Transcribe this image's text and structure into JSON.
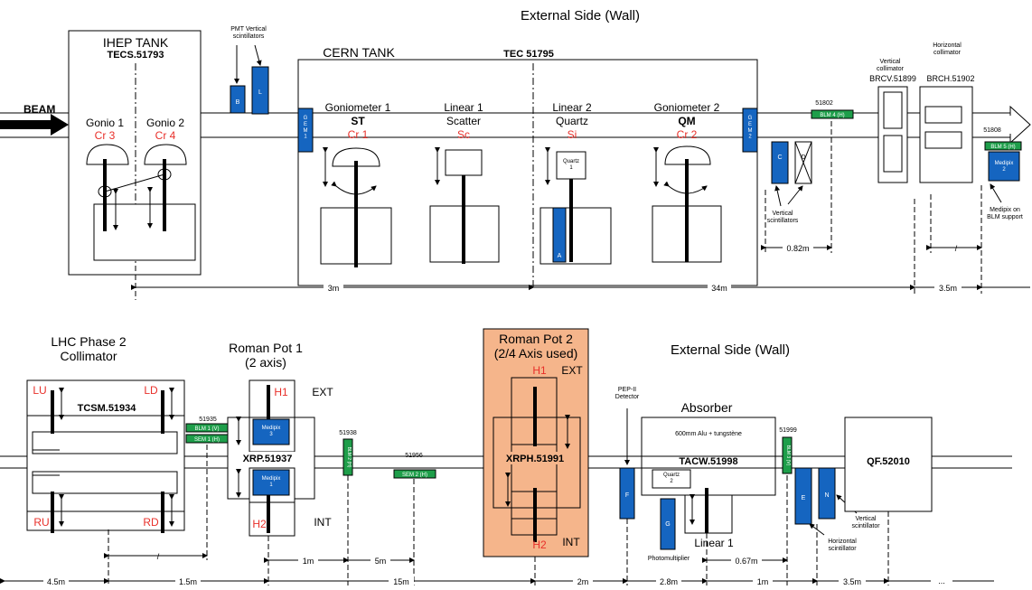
{
  "top": {
    "external_side": "External Side (Wall)",
    "beam": "BEAM",
    "ihep_tank": {
      "title": "IHEP TANK",
      "id": "TECS.51793"
    },
    "gonio1": {
      "name": "Gonio 1",
      "crystal": "Cr 3"
    },
    "gonio2": {
      "name": "Gonio 2",
      "crystal": "Cr 4"
    },
    "pmt": {
      "label": "PMT Vertical\nscintillators",
      "b": "B",
      "l": "L"
    },
    "cern_tank": {
      "title": "CERN TANK",
      "id": "TEC 51795"
    },
    "gem1": "G\nE\nM\n1",
    "gem2": "G\nE\nM\n2",
    "goniometer1": {
      "name": "Goniometer 1",
      "sub": "ST",
      "crystal": "Cr 1"
    },
    "linear1": {
      "name": "Linear 1",
      "sub": "Scatter",
      "crystal": "Sc"
    },
    "linear2": {
      "name": "Linear 2",
      "sub": "Quartz",
      "crystal": "Si",
      "box": "Quartz\n1",
      "a": "A"
    },
    "goniometer2": {
      "name": "Goniometer 2",
      "sub": "QM",
      "crystal": "Cr 2"
    },
    "blm51802": {
      "num": "51802",
      "label": "BLM 4 (H)"
    },
    "scint": {
      "c": "C",
      "d": "D",
      "label": "Vertical\nscintillators"
    },
    "vcoll": {
      "label": "Vertical\ncollimator",
      "id": "BRCV.51899"
    },
    "hcoll": {
      "label": "Horizontal\ncollimator",
      "id": "BRCH.51902"
    },
    "blm51808": {
      "num": "51808",
      "label": "BLM 5 (H)"
    },
    "medipix2": {
      "label": "Medipix\n2",
      "note": "Medipix on\nBLM support"
    },
    "dims": {
      "d3m": "3m",
      "d34m": "34m",
      "d082": "0.82m",
      "d35": "3.5m",
      "slash": "/"
    }
  },
  "bottom": {
    "lhc": {
      "title": "LHC Phase 2\nCollimator",
      "id": "TCSM.51934",
      "lu": "LU",
      "ld": "LD",
      "ru": "RU",
      "rd": "RD"
    },
    "blm51935": {
      "num": "51935",
      "blm": "BLM 1 (V)",
      "sem": "SEM 1 (H)"
    },
    "rp1": {
      "title": "Roman Pot 1\n(2 axis)",
      "id": "XRP.51937",
      "h1": "H1",
      "h2": "H2",
      "ext": "EXT",
      "int": "INT",
      "medipix3": "Medipix\n3",
      "medipix1": "Medipix\n1"
    },
    "blm51938": {
      "num": "51938",
      "label": "BLM 2 (H)"
    },
    "sem51956": {
      "num": "51956",
      "label": "SEM 2 (H)"
    },
    "rp2": {
      "title": "Roman Pot 2\n(2/4 Axis used)",
      "id": "XRPH.51991",
      "h1": "H1",
      "h2": "H2",
      "ext": "EXT",
      "int": "INT"
    },
    "external_side": "External Side (Wall)",
    "pep": {
      "label": "PEP-II\nDetector",
      "f": "F"
    },
    "absorber": {
      "title": "Absorber",
      "sub": "600mm Alu + tungstène",
      "id": "TACW.51998",
      "quartz": "Quartz\n2",
      "linear": "Linear 1"
    },
    "pm": {
      "g": "G",
      "label": "Photomultiplier"
    },
    "blm51999": {
      "num": "51999",
      "label": "BLM 3 (V)"
    },
    "qf": "QF.52010",
    "scint": {
      "e": "E",
      "n": "N",
      "v": "Vertical\nscintillator",
      "h": "Horizontal\nscintillator"
    },
    "dims": {
      "d45": "4.5m",
      "d15": "1.5m",
      "d15m": "15m",
      "d2m": "2m",
      "d28": "2.8m",
      "d1m": "1m",
      "d5m": "5m",
      "d1m2": "1m",
      "d067": "0.67m",
      "d35": "3.5m",
      "dots": "...",
      "slash": "/"
    }
  },
  "colors": {
    "blue": "#1565c0",
    "green": "#1e9e4a",
    "orange": "#f5b58b",
    "red": "#e8302a"
  }
}
